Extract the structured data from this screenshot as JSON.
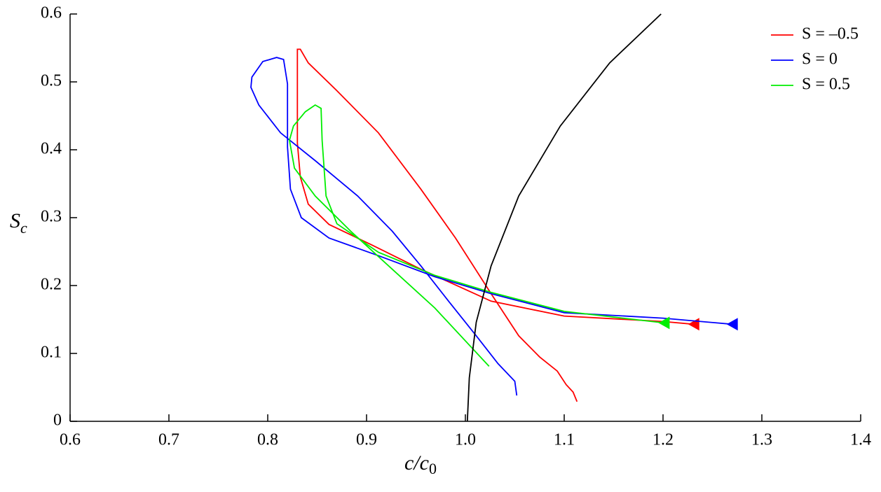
{
  "chart_data": {
    "type": "line",
    "x_label": [
      "c/c",
      "0"
    ],
    "y_label": [
      "S",
      "c"
    ],
    "xlim": [
      0.6,
      1.4
    ],
    "ylim": [
      0,
      0.6
    ],
    "xticks": [
      0.6,
      0.7,
      0.8,
      0.9,
      {
        "value": 1.0,
        "label": "1.0"
      },
      1.1,
      1.2,
      1.3,
      1.4
    ],
    "yticks": [
      0,
      0.1,
      0.2,
      0.3,
      0.4,
      0.5,
      0.6
    ],
    "legend": "upper right",
    "series": [
      {
        "name": "S = –0.5",
        "color": "#ff0000",
        "marker": "triangle-left",
        "x": [
          1.231,
          1.2,
          1.1,
          1.026,
          0.955,
          0.905,
          0.862,
          0.841,
          0.833,
          0.83,
          0.83,
          0.83,
          0.833,
          0.841,
          0.87,
          0.912,
          0.955,
          0.99,
          1.026,
          1.054,
          1.075,
          1.093,
          1.102,
          1.109,
          1.113
        ],
        "values": [
          0.143,
          0.147,
          0.155,
          0.177,
          0.224,
          0.26,
          0.29,
          0.32,
          0.36,
          0.41,
          0.5,
          0.548,
          0.548,
          0.528,
          0.487,
          0.425,
          0.342,
          0.27,
          0.188,
          0.126,
          0.095,
          0.074,
          0.054,
          0.043,
          0.029
        ]
      },
      {
        "name": "S = 0",
        "color": "#0000ff",
        "marker": "triangle-left",
        "x": [
          1.27,
          1.2,
          1.1,
          1.026,
          0.969,
          0.912,
          0.862,
          0.834,
          0.823,
          0.82,
          0.82,
          0.816,
          0.809,
          0.795,
          0.784,
          0.783,
          0.791,
          0.813,
          0.848,
          0.891,
          0.926,
          0.955,
          0.983,
          1.011,
          1.033,
          1.05,
          1.052
        ],
        "values": [
          0.143,
          0.152,
          0.16,
          0.188,
          0.213,
          0.244,
          0.27,
          0.3,
          0.342,
          0.404,
          0.497,
          0.533,
          0.536,
          0.53,
          0.507,
          0.492,
          0.466,
          0.425,
          0.384,
          0.332,
          0.28,
          0.229,
          0.177,
          0.126,
          0.085,
          0.059,
          0.038
        ]
      },
      {
        "name": "S = 0.5",
        "color": "#00ee00",
        "marker": "triangle-left",
        "x": [
          1.201,
          1.1,
          1.026,
          0.969,
          0.912,
          0.87,
          0.859,
          0.855,
          0.854,
          0.848,
          0.838,
          0.826,
          0.822,
          0.827,
          0.848,
          0.884,
          0.926,
          0.969,
          1.024
        ],
        "values": [
          0.145,
          0.162,
          0.19,
          0.215,
          0.249,
          0.291,
          0.332,
          0.414,
          0.461,
          0.466,
          0.456,
          0.435,
          0.414,
          0.373,
          0.332,
          0.28,
          0.224,
          0.167,
          0.081
        ]
      },
      {
        "color": "#000000",
        "x": [
          1.002,
          1.004,
          1.011,
          1.026,
          1.054,
          1.096,
          1.146,
          1.198
        ],
        "values": [
          0,
          0.064,
          0.146,
          0.229,
          0.332,
          0.435,
          0.528,
          0.6
        ]
      }
    ]
  }
}
